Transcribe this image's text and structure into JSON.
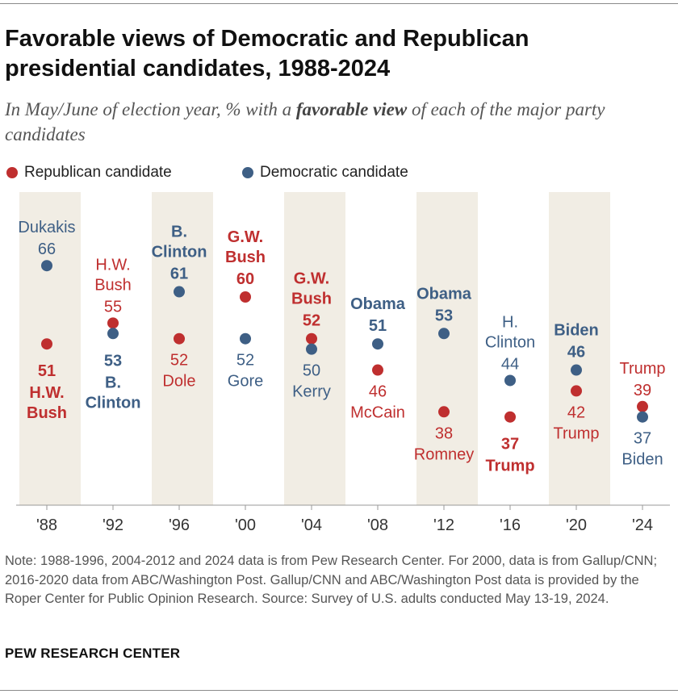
{
  "title": "Favorable views of Democratic and Republican presidential candidates, 1988-2024",
  "subtitle": {
    "before": "In May/June of election year, % with a ",
    "emphasis": "favorable view",
    "after": " of each of the major party candidates"
  },
  "colors": {
    "republican": "#bf2f2f",
    "democratic": "#3e5f85",
    "band": "#f1ede4",
    "axis": "#999999"
  },
  "legend": [
    {
      "label": "Republican candidate",
      "color": "#bf2f2f"
    },
    {
      "label": "Democratic candidate",
      "color": "#3e5f85"
    }
  ],
  "chart_data": {
    "type": "scatter",
    "title": "Favorable views of Democratic and Republican presidential candidates, 1988-2024",
    "categories": [
      "'88",
      "'92",
      "'96",
      "'00",
      "'04",
      "'08",
      "'12",
      "'16",
      "'20",
      "'24"
    ],
    "shaded_categories": [
      "'88",
      "'96",
      "'04",
      "'12",
      "'20"
    ],
    "ylim": [
      15,
      75
    ],
    "series": [
      {
        "name": "Republican candidate",
        "color": "#bf2f2f",
        "values": [
          51,
          55,
          52,
          60,
          52,
          46,
          38,
          37,
          42,
          39
        ],
        "candidates": [
          "H.W. Bush",
          "H.W. Bush",
          "Dole",
          "G.W. Bush",
          "G.W. Bush",
          "McCain",
          "Romney",
          "Trump",
          "Trump",
          "Trump"
        ]
      },
      {
        "name": "Democratic candidate",
        "color": "#3e5f85",
        "values": [
          66,
          53,
          61,
          52,
          50,
          51,
          53,
          44,
          46,
          37
        ],
        "candidates": [
          "Dukakis",
          "B. Clinton",
          "B. Clinton",
          "Gore",
          "Kerry",
          "Obama",
          "Obama",
          "H. Clinton",
          "Biden",
          "Biden"
        ]
      }
    ],
    "winners": {
      "Republican candidate": [
        true,
        false,
        false,
        true,
        true,
        false,
        false,
        true,
        false,
        false
      ],
      "Democratic candidate": [
        false,
        true,
        true,
        false,
        false,
        true,
        true,
        false,
        true,
        false
      ]
    },
    "label_positions": {
      "Republican candidate": [
        "below",
        "above",
        "below",
        "above",
        "above",
        "below",
        "below",
        "below",
        "below",
        "above"
      ],
      "Democratic candidate": [
        "above",
        "below",
        "above",
        "below",
        "below",
        "above",
        "above",
        "above",
        "above",
        "below"
      ]
    }
  },
  "note": "Note: 1988-1996, 2004-2012 and 2024 data is from Pew Research Center. For 2000, data is from Gallup/CNN; 2016-2020 data from ABC/Washington Post. Gallup/CNN and ABC/Washington Post data is provided by the Roper Center for Public Opinion Research. Source: Survey of U.S. adults conducted May 13-19, 2024.",
  "brand": "PEW RESEARCH CENTER"
}
